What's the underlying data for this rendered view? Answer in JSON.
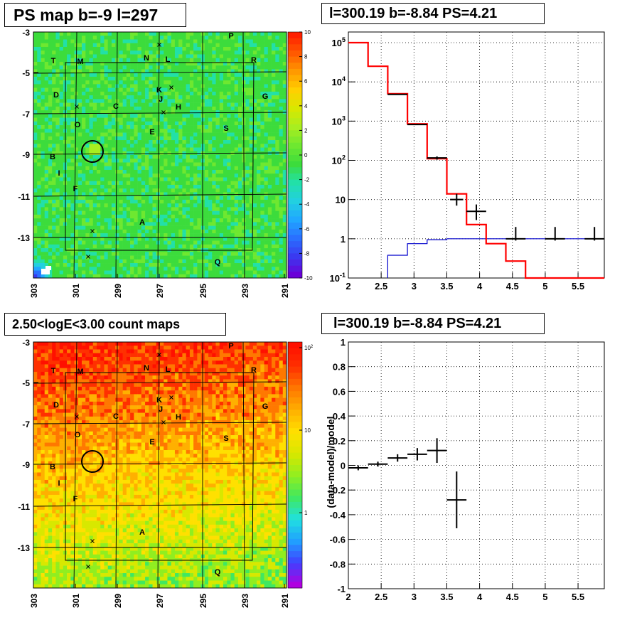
{
  "panel_titles": {
    "ps_map": "PS map b=-9 l=297",
    "spectrum": "l=300.19 b=-8.84 PS=4.21",
    "count_map": "2.50<logE<3.00 count maps",
    "residual": "l=300.19 b=-8.84 PS=4.21"
  },
  "chart_data": [
    {
      "type": "heatmap",
      "title": "PS map b=-9 l=297",
      "x_ticks": [
        "303",
        "301",
        "299",
        "297",
        "295",
        "293",
        "291"
      ],
      "y_ticks": [
        "-3",
        "-5",
        "-7",
        "-9",
        "-11",
        "-13"
      ],
      "colorbar_ticks": [
        "10",
        "8",
        "6",
        "4",
        "2",
        "0",
        "-2",
        "-4",
        "-6",
        "-8",
        "-10"
      ],
      "zlim": [
        -10,
        10
      ],
      "source_labels": [
        "P",
        "T",
        "M",
        "N",
        "L",
        "R",
        "D",
        "K",
        "J",
        "H",
        "G",
        "C",
        "O",
        "E",
        "S",
        "B",
        "I",
        "F",
        "A",
        "Q"
      ],
      "colors": {
        "dominant": "#3cdc3c",
        "hotspot": "#3a3af0"
      }
    },
    {
      "type": "line",
      "title": "l=300.19 b=-8.84 PS=4.21",
      "log_y": true,
      "xlim": [
        2,
        5.9
      ],
      "ylim": [
        0.1,
        100000
      ],
      "x_ticks": [
        "2",
        "2.5",
        "3",
        "3.5",
        "4",
        "4.5",
        "5",
        "5.5"
      ],
      "y_ticks": [
        "10^5",
        "10^4",
        "10^3",
        "10^2",
        "10",
        "1",
        "10^-1"
      ],
      "grid": true,
      "series": [
        {
          "role": "model",
          "color": "#ff0000",
          "edges": [
            2,
            2.3,
            2.6,
            2.9,
            3.2,
            3.5,
            3.8,
            4.1,
            4.4,
            4.7,
            5.9
          ],
          "values": [
            100000,
            25000,
            5000,
            850,
            110,
            14,
            2.3,
            0.75,
            0.27,
            0.1
          ]
        },
        {
          "role": "point_source",
          "color": "#0000cc",
          "edges": [
            2.6,
            2.9,
            3.2,
            3.5,
            5.9
          ],
          "values": [
            0.38,
            0.75,
            0.95,
            1.0
          ]
        },
        {
          "role": "data",
          "color": "#000000",
          "x": [
            2.75,
            3.05,
            3.35,
            3.65,
            3.95,
            4.55,
            5.15,
            5.75
          ],
          "xerr": [
            0.15,
            0.15,
            0.15,
            0.1,
            0.15,
            0.15,
            0.15,
            0.15
          ],
          "y": [
            4800,
            820,
            115,
            10,
            5,
            1,
            1,
            1
          ],
          "yerr_low": [
            4700,
            790,
            104,
            7,
            3,
            0.9,
            0.9,
            0.9
          ],
          "yerr_high": [
            4900,
            850,
            126,
            14,
            7.5,
            2,
            2,
            2
          ]
        }
      ],
      "colors": {
        "model": "#ff0000",
        "point_source": "#0000cc",
        "data": "#000000"
      }
    },
    {
      "type": "heatmap",
      "title": "2.50<logE<3.00 count maps",
      "x_ticks": [
        "303",
        "301",
        "299",
        "297",
        "295",
        "293",
        "291"
      ],
      "y_ticks": [
        "-3",
        "-5",
        "-7",
        "-9",
        "-11",
        "-13"
      ],
      "colorbar_ticks": [
        "10^2",
        "10",
        "1"
      ],
      "log_z": true,
      "source_labels": [
        "P",
        "T",
        "M",
        "N",
        "L",
        "R",
        "D",
        "K",
        "J",
        "H",
        "G",
        "C",
        "O",
        "E",
        "S",
        "B",
        "I",
        "F",
        "A",
        "Q"
      ],
      "colors": {
        "top": "#ff2a00",
        "middle": "#ffcc00",
        "bottom": "#d8e800"
      }
    },
    {
      "type": "scatter",
      "title": "l=300.19 b=-8.84 PS=4.21",
      "ylabel": "(data-model)/model",
      "xlim": [
        2,
        5.9
      ],
      "ylim": [
        -1,
        1
      ],
      "x_ticks": [
        "2",
        "2.5",
        "3",
        "3.5",
        "4",
        "4.5",
        "5",
        "5.5"
      ],
      "y_ticks": [
        "1",
        "0.8",
        "0.6",
        "0.4",
        "0.2",
        "0",
        "-0.2",
        "-0.4",
        "-0.6",
        "-0.8",
        "-1"
      ],
      "grid": true,
      "points": [
        {
          "x": 2.15,
          "y": -0.02,
          "xerr": 0.15,
          "yerr": 0.02
        },
        {
          "x": 2.45,
          "y": 0.01,
          "xerr": 0.15,
          "yerr": 0.02
        },
        {
          "x": 2.75,
          "y": 0.06,
          "xerr": 0.15,
          "yerr": 0.03
        },
        {
          "x": 3.05,
          "y": 0.09,
          "xerr": 0.15,
          "yerr": 0.05
        },
        {
          "x": 3.35,
          "y": 0.12,
          "xerr": 0.15,
          "yerr": 0.1
        },
        {
          "x": 3.65,
          "y": -0.28,
          "xerr": 0.15,
          "yerr": 0.23
        }
      ]
    }
  ]
}
